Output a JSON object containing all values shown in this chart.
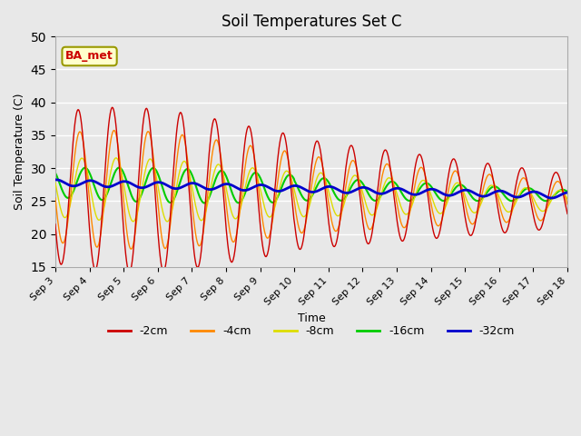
{
  "title": "Soil Temperatures Set C",
  "xlabel": "Time",
  "ylabel": "Soil Temperature (C)",
  "ylim": [
    15,
    50
  ],
  "yticks": [
    15,
    20,
    25,
    30,
    35,
    40,
    45,
    50
  ],
  "background_color": "#e8e8e8",
  "plot_bg_color": "#e8e8e8",
  "legend_labels": [
    "-2cm",
    "-4cm",
    "-8cm",
    "-16cm",
    "-32cm"
  ],
  "legend_colors": [
    "#cc0000",
    "#ff8800",
    "#dddd00",
    "#00cc00",
    "#0000cc"
  ],
  "annotation_text": "BA_met",
  "annotation_color": "#cc0000",
  "annotation_bg": "#ffffcc",
  "n_days": 15,
  "x_tick_positions": [
    0,
    1,
    2,
    3,
    4,
    5,
    6,
    7,
    8,
    9,
    10,
    11,
    12,
    13,
    14,
    15
  ],
  "x_tick_labels": [
    "Sep 3",
    "Sep 4",
    "Sep 5",
    "Sep 6",
    "Sep 7",
    "Sep 8",
    "Sep 9",
    "Sep 10",
    "Sep 11",
    "Sep 12",
    "Sep 13",
    "Sep 14",
    "Sep 15",
    "Sep 16",
    "Sep 17",
    "Sep 18"
  ],
  "points_per_day": 48
}
